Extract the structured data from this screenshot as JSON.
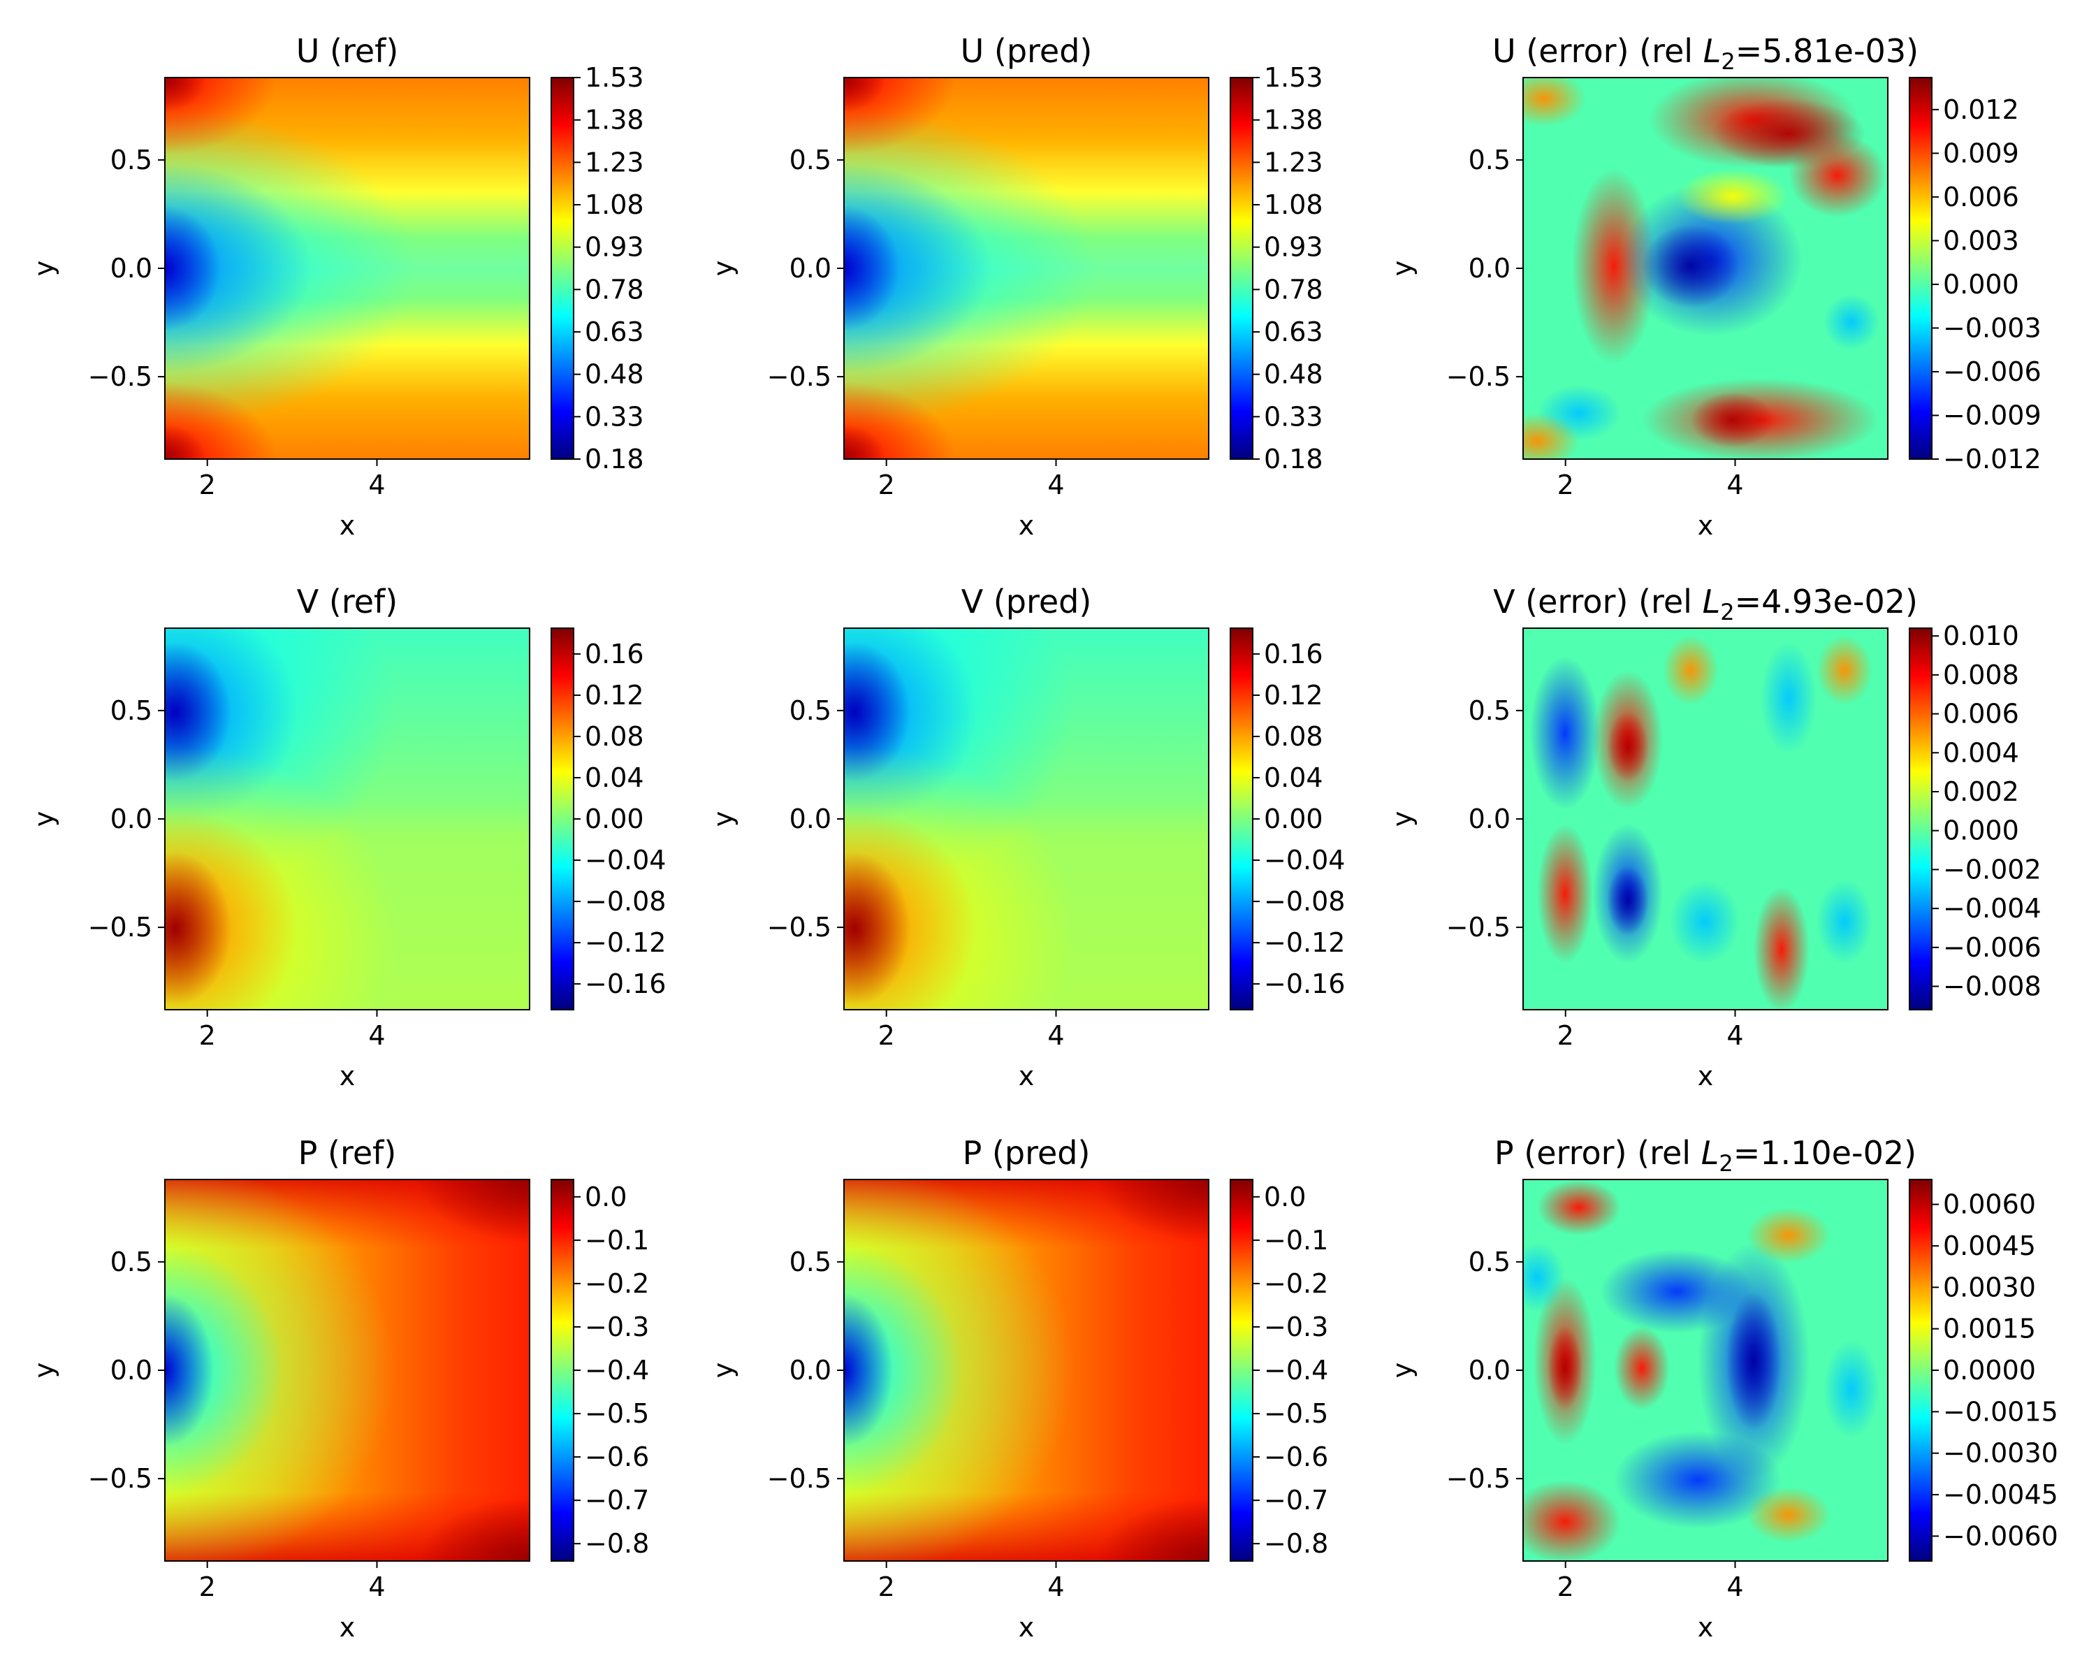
{
  "colormap": {
    "name": "jet",
    "stops": [
      "#00007f",
      "#0000ff",
      "#007fff",
      "#00ffff",
      "#7fff7f",
      "#ffff00",
      "#ff7f00",
      "#ff0000",
      "#7f0000"
    ]
  },
  "chart_data": [
    {
      "type": "heatmap",
      "field": "U",
      "kind": "ref",
      "title": "U (ref)",
      "xlabel": "x",
      "ylabel": "y",
      "xlim": [
        1.5,
        5.8
      ],
      "ylim": [
        -0.88,
        0.88
      ],
      "xticks": [
        "2",
        "4"
      ],
      "yticks": [
        "0.5",
        "0.0",
        "−0.5"
      ],
      "vlim": [
        0.18,
        1.53
      ],
      "colorbar_ticks": [
        "0.18",
        "0.33",
        "0.48",
        "0.63",
        "0.78",
        "0.93",
        "1.08",
        "1.23",
        "1.38",
        "1.53"
      ]
    },
    {
      "type": "heatmap",
      "field": "U",
      "kind": "pred",
      "title": "U (pred)",
      "xlabel": "x",
      "ylabel": "y",
      "xlim": [
        1.5,
        5.8
      ],
      "ylim": [
        -0.88,
        0.88
      ],
      "xticks": [
        "2",
        "4"
      ],
      "yticks": [
        "0.5",
        "0.0",
        "−0.5"
      ],
      "vlim": [
        0.18,
        1.53
      ],
      "colorbar_ticks": [
        "0.18",
        "0.33",
        "0.48",
        "0.63",
        "0.78",
        "0.93",
        "1.08",
        "1.23",
        "1.38",
        "1.53"
      ]
    },
    {
      "type": "heatmap",
      "field": "U",
      "kind": "error",
      "title_prefix": "U (error) (rel ",
      "title_suffix": "=5.81e-03)",
      "xlabel": "x",
      "ylabel": "y",
      "xlim": [
        1.5,
        5.8
      ],
      "ylim": [
        -0.88,
        0.88
      ],
      "xticks": [
        "2",
        "4"
      ],
      "yticks": [
        "0.5",
        "0.0",
        "−0.5"
      ],
      "vlim": [
        -0.012,
        0.0142
      ],
      "colorbar_ticks": [
        "−0.012",
        "−0.009",
        "−0.006",
        "−0.003",
        "0.000",
        "0.003",
        "0.006",
        "0.009",
        "0.012"
      ]
    },
    {
      "type": "heatmap",
      "field": "V",
      "kind": "ref",
      "title": "V (ref)",
      "xlabel": "x",
      "ylabel": "y",
      "xlim": [
        1.5,
        5.8
      ],
      "ylim": [
        -0.88,
        0.88
      ],
      "xticks": [
        "2",
        "4"
      ],
      "yticks": [
        "0.5",
        "0.0",
        "−0.5"
      ],
      "vlim": [
        -0.185,
        0.185
      ],
      "colorbar_ticks": [
        "−0.16",
        "−0.12",
        "−0.08",
        "−0.04",
        "0.00",
        "0.04",
        "0.08",
        "0.12",
        "0.16"
      ]
    },
    {
      "type": "heatmap",
      "field": "V",
      "kind": "pred",
      "title": "V (pred)",
      "xlabel": "x",
      "ylabel": "y",
      "xlim": [
        1.5,
        5.8
      ],
      "ylim": [
        -0.88,
        0.88
      ],
      "xticks": [
        "2",
        "4"
      ],
      "yticks": [
        "0.5",
        "0.0",
        "−0.5"
      ],
      "vlim": [
        -0.185,
        0.185
      ],
      "colorbar_ticks": [
        "−0.16",
        "−0.12",
        "−0.08",
        "−0.04",
        "0.00",
        "0.04",
        "0.08",
        "0.12",
        "0.16"
      ]
    },
    {
      "type": "heatmap",
      "field": "V",
      "kind": "error",
      "title_prefix": "V (error) (rel ",
      "title_suffix": "=4.93e-02)",
      "xlabel": "x",
      "ylabel": "y",
      "xlim": [
        1.5,
        5.8
      ],
      "ylim": [
        -0.88,
        0.88
      ],
      "xticks": [
        "2",
        "4"
      ],
      "yticks": [
        "0.5",
        "0.0",
        "−0.5"
      ],
      "vlim": [
        -0.0092,
        0.0104
      ],
      "colorbar_ticks": [
        "−0.008",
        "−0.006",
        "−0.004",
        "−0.002",
        "0.000",
        "0.002",
        "0.004",
        "0.006",
        "0.008",
        "0.010"
      ]
    },
    {
      "type": "heatmap",
      "field": "P",
      "kind": "ref",
      "title": "P (ref)",
      "xlabel": "x",
      "ylabel": "y",
      "xlim": [
        1.5,
        5.8
      ],
      "ylim": [
        -0.88,
        0.88
      ],
      "xticks": [
        "2",
        "4"
      ],
      "yticks": [
        "0.5",
        "0.0",
        "−0.5"
      ],
      "vlim": [
        -0.84,
        0.04
      ],
      "colorbar_ticks": [
        "−0.8",
        "−0.7",
        "−0.6",
        "−0.5",
        "−0.4",
        "−0.3",
        "−0.2",
        "−0.1",
        "0.0"
      ]
    },
    {
      "type": "heatmap",
      "field": "P",
      "kind": "pred",
      "title": "P (pred)",
      "xlabel": "x",
      "ylabel": "y",
      "xlim": [
        1.5,
        5.8
      ],
      "ylim": [
        -0.88,
        0.88
      ],
      "xticks": [
        "2",
        "4"
      ],
      "yticks": [
        "0.5",
        "0.0",
        "−0.5"
      ],
      "vlim": [
        -0.84,
        0.04
      ],
      "colorbar_ticks": [
        "−0.8",
        "−0.7",
        "−0.6",
        "−0.5",
        "−0.4",
        "−0.3",
        "−0.2",
        "−0.1",
        "0.0"
      ]
    },
    {
      "type": "heatmap",
      "field": "P",
      "kind": "error",
      "title_prefix": "P (error) (rel ",
      "title_suffix": "=1.10e-02)",
      "xlabel": "x",
      "ylabel": "y",
      "xlim": [
        1.5,
        5.8
      ],
      "ylim": [
        -0.88,
        0.88
      ],
      "xticks": [
        "2",
        "4"
      ],
      "yticks": [
        "0.5",
        "0.0",
        "−0.5"
      ],
      "vlim": [
        -0.0069,
        0.0069
      ],
      "colorbar_ticks": [
        "−0.0060",
        "−0.0045",
        "−0.0030",
        "−0.0015",
        "0.0000",
        "0.0015",
        "0.0030",
        "0.0045",
        "0.0060"
      ]
    }
  ]
}
